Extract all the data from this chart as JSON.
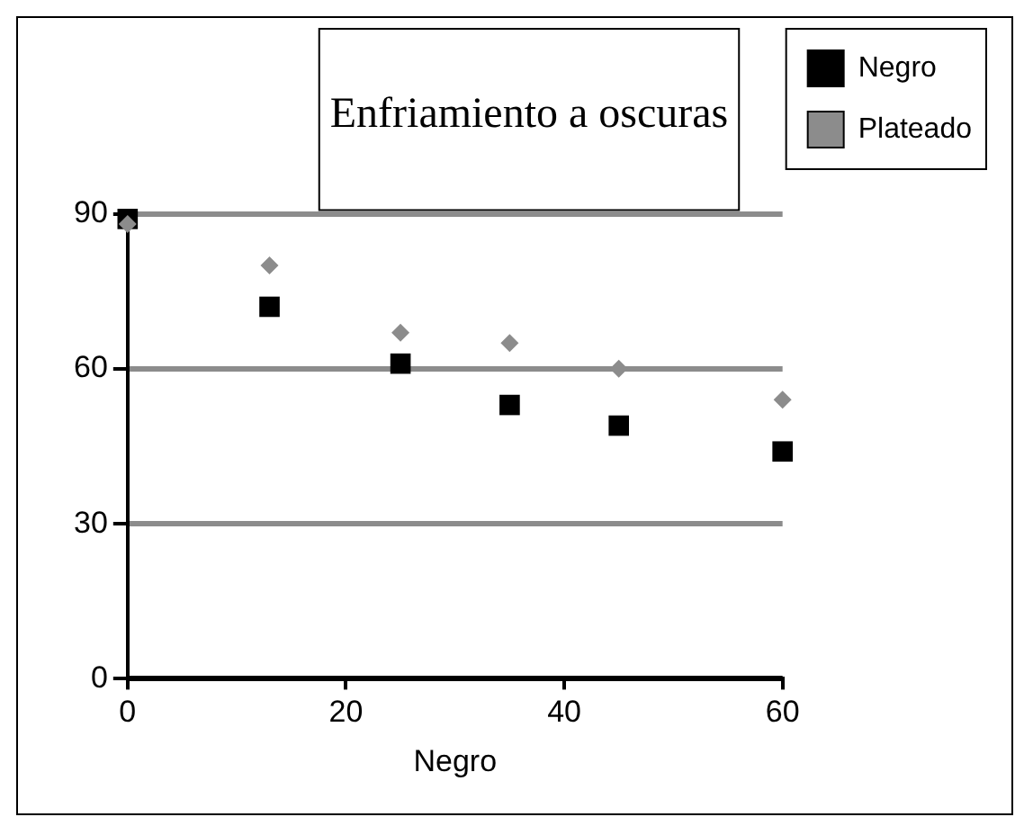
{
  "chart_data": {
    "type": "scatter",
    "title": "Enfriamiento a oscuras",
    "xlabel": "Negro",
    "x": [
      0,
      13,
      25,
      35,
      45,
      60
    ],
    "series": [
      {
        "name": "Negro",
        "color": "#000000",
        "marker": "square",
        "values": [
          89,
          72,
          61,
          53,
          49,
          44
        ]
      },
      {
        "name": "Plateado",
        "color": "#8c8c8c",
        "marker": "diamond",
        "values": [
          88,
          80,
          67,
          65,
          60,
          54
        ]
      }
    ],
    "xlim": [
      0,
      60
    ],
    "xticks": [
      0,
      20,
      40,
      60
    ],
    "ylim": [
      0,
      90
    ],
    "yticks": [
      0,
      30,
      60,
      90
    ],
    "grid": "y",
    "legend": "top right"
  }
}
